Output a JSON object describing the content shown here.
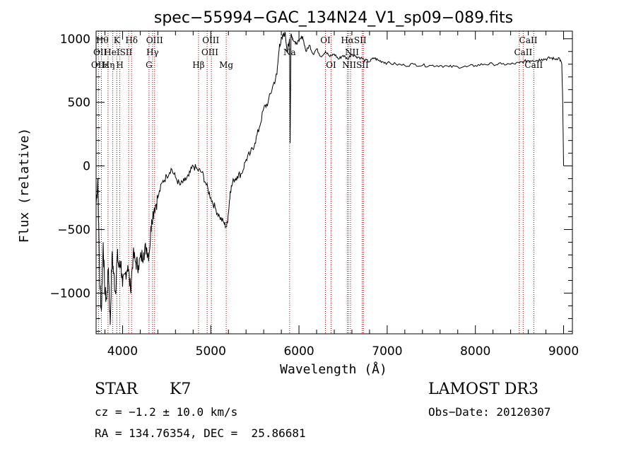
{
  "chart_data": {
    "type": "line",
    "title": "spec−55994−GAC_134N24_V1_sp09−089.fits",
    "xlabel": "Wavelength (Å)",
    "ylabel": "Flux (relative)",
    "xlim": [
      3700,
      9100
    ],
    "ylim": [
      -1320,
      1060
    ],
    "xticks": [
      4000,
      5000,
      6000,
      7000,
      8000,
      9000
    ],
    "yticks": [
      -1000,
      -500,
      0,
      500,
      1000
    ],
    "ytick_labels": [
      "−1000",
      "−500",
      "0",
      "500",
      "1000"
    ],
    "series": [
      {
        "name": "flux",
        "x": [
          3700,
          3720,
          3740,
          3760,
          3780,
          3800,
          3820,
          3840,
          3860,
          3880,
          3900,
          3920,
          3940,
          3960,
          3980,
          4000,
          4030,
          4060,
          4090,
          4120,
          4150,
          4180,
          4210,
          4240,
          4270,
          4300,
          4330,
          4360,
          4400,
          4450,
          4500,
          4550,
          4600,
          4650,
          4700,
          4750,
          4800,
          4850,
          4900,
          4950,
          5000,
          5050,
          5100,
          5150,
          5180,
          5200,
          5220,
          5260,
          5300,
          5350,
          5400,
          5450,
          5500,
          5550,
          5600,
          5650,
          5700,
          5750,
          5780,
          5810,
          5840,
          5870,
          5880,
          5893,
          5900,
          5910,
          5930,
          5960,
          6000,
          6040,
          6080,
          6120,
          6160,
          6200,
          6250,
          6300,
          6350,
          6400,
          6450,
          6500,
          6550,
          6600,
          6650,
          6700,
          6750,
          6800,
          6850,
          6900,
          6950,
          7000,
          7100,
          7200,
          7300,
          7400,
          7500,
          7600,
          7700,
          7800,
          7900,
          8000,
          8100,
          8200,
          8300,
          8400,
          8500,
          8550,
          8600,
          8650,
          8700,
          8750,
          8800,
          8850,
          8900,
          8950,
          8980,
          8990,
          9000
        ],
        "values": [
          -300,
          -100,
          -900,
          -1140,
          -600,
          -1000,
          -1050,
          -800,
          -1250,
          -700,
          -850,
          -1000,
          -700,
          -800,
          -750,
          -950,
          -850,
          -780,
          -980,
          -700,
          -760,
          -780,
          -720,
          -680,
          -640,
          -700,
          -420,
          -330,
          -250,
          -130,
          -80,
          -20,
          -90,
          -150,
          -120,
          -80,
          0,
          -30,
          -50,
          -150,
          -250,
          -330,
          -400,
          -450,
          -480,
          -370,
          -200,
          -110,
          -80,
          -60,
          50,
          100,
          180,
          300,
          450,
          500,
          620,
          720,
          960,
          1000,
          1050,
          900,
          950,
          1000,
          180,
          1040,
          1000,
          960,
          980,
          1020,
          900,
          950,
          880,
          920,
          860,
          900,
          860,
          880,
          840,
          870,
          840,
          880,
          860,
          850,
          830,
          820,
          850,
          830,
          820,
          810,
          800,
          790,
          800,
          790,
          790,
          790,
          780,
          780,
          780,
          790,
          800,
          800,
          800,
          800,
          810,
          820,
          830,
          830,
          830,
          840,
          840,
          850,
          840,
          850,
          800,
          500,
          0
        ]
      }
    ],
    "lines": [
      {
        "name": "Hε",
        "x": 3727
      },
      {
        "name": "OII",
        "x": 3760
      },
      {
        "name": "Hη",
        "x": 3835
      },
      {
        "name": "HeI",
        "x": 3889
      },
      {
        "name": "K",
        "x": 3934
      },
      {
        "name": "H",
        "x": 3969
      },
      {
        "name": "SII",
        "x": 4069
      },
      {
        "name": "Hδ",
        "x": 4102
      },
      {
        "name": "G",
        "x": 4300
      },
      {
        "name": "Hγ",
        "x": 4340
      },
      {
        "name": "OIII",
        "x": 4363
      },
      {
        "name": "Hβ",
        "x": 4861
      },
      {
        "name": "OIII",
        "x": 4959
      },
      {
        "name": "OIII",
        "x": 5007
      },
      {
        "name": "Mg",
        "x": 5175
      },
      {
        "name": "Na",
        "x": 5894
      },
      {
        "name": "OI",
        "x": 6300
      },
      {
        "name": "OI",
        "x": 6364
      },
      {
        "name": "NII",
        "x": 6548
      },
      {
        "name": "Hα",
        "x": 6563
      },
      {
        "name": "NII",
        "x": 6584
      },
      {
        "name": "SII",
        "x": 6717
      },
      {
        "name": "SII",
        "x": 6731
      },
      {
        "name": "CaII",
        "x": 8498
      },
      {
        "name": "CaII",
        "x": 8542
      },
      {
        "name": "CaII",
        "x": 8662
      }
    ],
    "line_labels": [
      {
        "text": "Hθ",
        "x": 3770,
        "row": 1
      },
      {
        "text": "K",
        "x": 3934,
        "row": 1
      },
      {
        "text": "Hδ",
        "x": 4102,
        "row": 1
      },
      {
        "text": "OIII",
        "x": 4363,
        "row": 1
      },
      {
        "text": "OIII",
        "x": 5000,
        "row": 1
      },
      {
        "text": "OI",
        "x": 6300,
        "row": 1
      },
      {
        "text": "HαSII",
        "x": 6620,
        "row": 1
      },
      {
        "text": "CaII",
        "x": 8600,
        "row": 1
      },
      {
        "text": "OII",
        "x": 3745,
        "row": 2
      },
      {
        "text": "HeI",
        "x": 3880,
        "row": 2
      },
      {
        "text": "SII",
        "x": 4040,
        "row": 2
      },
      {
        "text": "Hγ",
        "x": 4340,
        "row": 2
      },
      {
        "text": "OIII",
        "x": 4990,
        "row": 2
      },
      {
        "text": "Na",
        "x": 5894,
        "row": 2
      },
      {
        "text": "NII",
        "x": 6600,
        "row": 2
      },
      {
        "text": "CaII",
        "x": 8542,
        "row": 2
      },
      {
        "text": "OIIε",
        "x": 3745,
        "row": 3
      },
      {
        "text": "Hη",
        "x": 3840,
        "row": 3
      },
      {
        "text": "H",
        "x": 3969,
        "row": 3
      },
      {
        "text": "G",
        "x": 4300,
        "row": 3
      },
      {
        "text": "Hβ",
        "x": 4861,
        "row": 3
      },
      {
        "text": "Mg",
        "x": 5175,
        "row": 3
      },
      {
        "text": "OI",
        "x": 6364,
        "row": 3
      },
      {
        "text": "NIISII",
        "x": 6640,
        "row": 3
      },
      {
        "text": "CaII",
        "x": 8662,
        "row": 3
      }
    ]
  },
  "info": {
    "object_type": "STAR",
    "subclass": "K7",
    "survey": "LAMOST DR3",
    "velocity": "cz = −1.2 ± 10.0 km/s",
    "obs_date": "Obs−Date: 20120307",
    "coords": "RA = 134.76354, DEC =  25.86681"
  },
  "colors": {
    "axis": "#000000",
    "line_marker": "#a00000",
    "spectrum": "#000000"
  }
}
